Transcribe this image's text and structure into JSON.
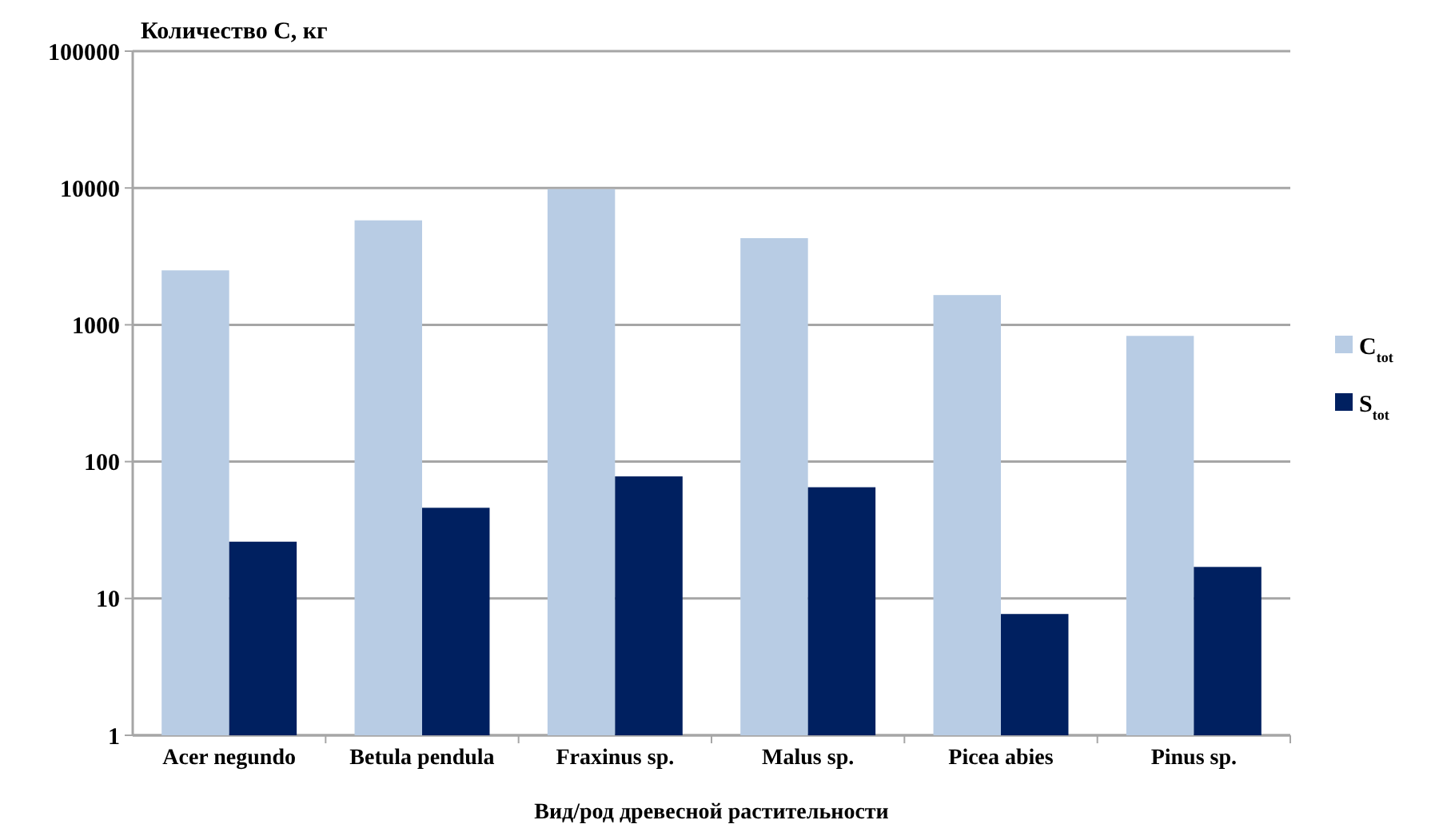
{
  "chart_data": {
    "type": "bar",
    "ylabel": "Количество С, кг",
    "xlabel": "Вид/род древесной растительности",
    "categories": [
      "Acer negundo",
      "Betula pendula",
      "Fraxinus sp.",
      "Malus sp.",
      "Picea abies",
      "Pinus sp."
    ],
    "series": [
      {
        "name": "C$_{tot}$",
        "color": "#b8cce4",
        "values": [
          2500,
          5800,
          9800,
          4300,
          1650,
          830
        ]
      },
      {
        "name": "S$_{tot}$",
        "color": "#002060",
        "values": [
          26,
          46,
          78,
          65,
          7.7,
          17
        ]
      }
    ],
    "log": true,
    "ylim": [
      1,
      100000
    ],
    "yticks": [
      1,
      10,
      100,
      1000,
      10000,
      100000
    ],
    "grid": "y",
    "legend": "right"
  }
}
